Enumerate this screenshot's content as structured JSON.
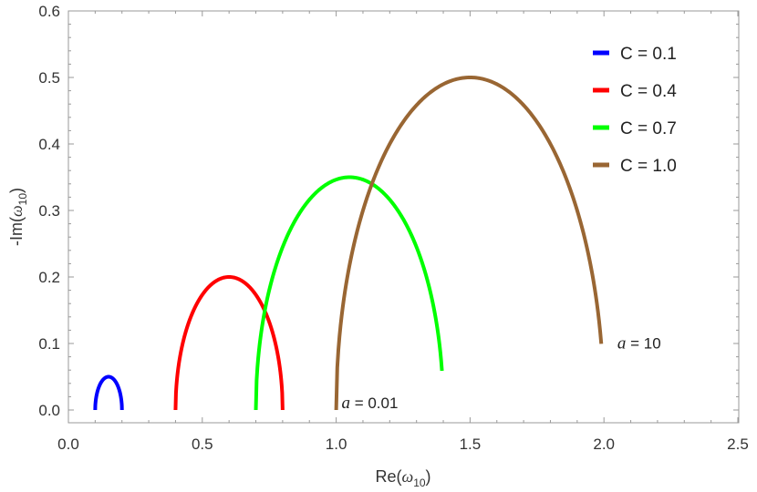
{
  "chart_data": {
    "type": "line",
    "xlabel": {
      "main": "Re(",
      "symbol": "ω",
      "sub": "10",
      "close": ")"
    },
    "ylabel": {
      "main": "-Im(",
      "symbol": "ω",
      "sub": "10",
      "close": ")"
    },
    "xlim": [
      0.0,
      2.5
    ],
    "ylim": [
      0.0,
      0.6
    ],
    "x_ticks": [
      {
        "value": 0.0,
        "label": "0.0"
      },
      {
        "value": 0.5,
        "label": "0.5"
      },
      {
        "value": 1.0,
        "label": "1.0"
      },
      {
        "value": 1.5,
        "label": "1.5"
      },
      {
        "value": 2.0,
        "label": "2.0"
      },
      {
        "value": 2.5,
        "label": "2.5"
      }
    ],
    "y_ticks": [
      {
        "value": 0.0,
        "label": "0.0"
      },
      {
        "value": 0.1,
        "label": "0.1"
      },
      {
        "value": 0.2,
        "label": "0.2"
      },
      {
        "value": 0.3,
        "label": "0.3"
      },
      {
        "value": 0.4,
        "label": "0.4"
      },
      {
        "value": 0.5,
        "label": "0.5"
      },
      {
        "value": 0.6,
        "label": "0.6"
      }
    ],
    "grid": false,
    "legend_position": "top-right",
    "series": [
      {
        "name": "C = 0.1",
        "color": "#0000ff",
        "center": 0.15,
        "radius_x": 0.05,
        "peak": 0.05,
        "x_start": 0.1,
        "x_end": 0.2
      },
      {
        "name": "C = 0.4",
        "color": "#ff0000",
        "center": 0.6,
        "radius_x": 0.2,
        "peak": 0.2,
        "x_start": 0.4,
        "x_end": 0.8
      },
      {
        "name": "C = 0.7",
        "color": "#00ff00",
        "center": 1.05,
        "radius_x": 0.35,
        "peak": 0.35,
        "x_start": 0.7,
        "x_end": 1.395
      },
      {
        "name": "C = 1.0",
        "color": "#996633",
        "center": 1.5,
        "radius_x": 0.5,
        "peak": 0.5,
        "x_start": 1.0,
        "x_end": 1.99
      }
    ],
    "annotations": [
      {
        "var": "a",
        "text": " = 0.01",
        "x": 1.02,
        "y": 0.0
      },
      {
        "var": "a",
        "text": " = 10",
        "x": 2.05,
        "y": 0.09
      }
    ]
  }
}
